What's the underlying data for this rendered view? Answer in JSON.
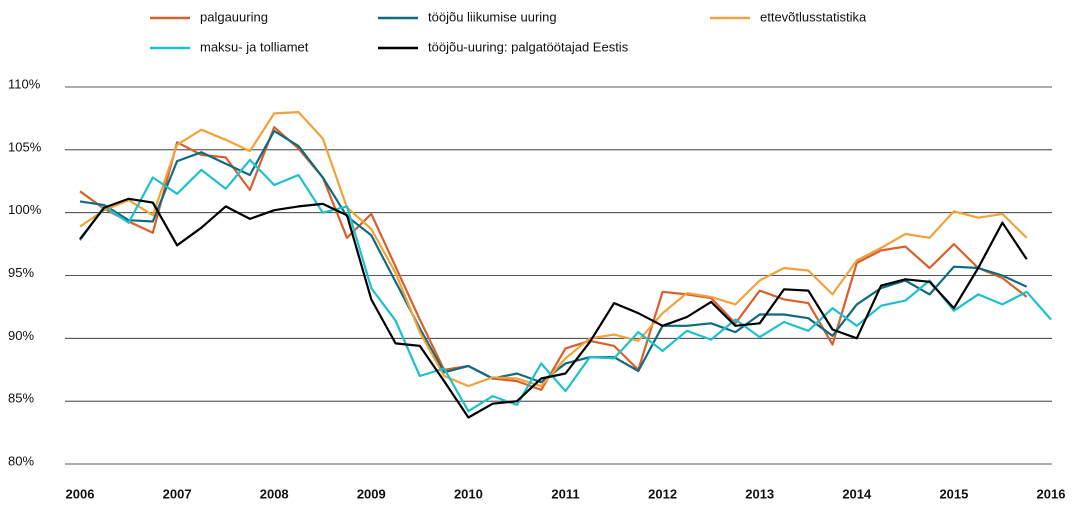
{
  "chart_data": {
    "type": "line",
    "x": [
      2006,
      2006.25,
      2006.5,
      2006.75,
      2007,
      2007.25,
      2007.5,
      2007.75,
      2008,
      2008.25,
      2008.5,
      2008.75,
      2009,
      2009.25,
      2009.5,
      2009.75,
      2010,
      2010.25,
      2010.5,
      2010.75,
      2011,
      2011.25,
      2011.5,
      2011.75,
      2012,
      2012.25,
      2012.5,
      2012.75,
      2013,
      2013.25,
      2013.5,
      2013.75,
      2014,
      2014.25,
      2014.5,
      2014.75,
      2015,
      2015.25,
      2015.5,
      2015.75,
      2016
    ],
    "series": [
      {
        "name": "palgauuring",
        "color": "#d95f2b",
        "values": [
          101.7,
          100.3,
          99.3,
          98.4,
          105.6,
          104.6,
          104.4,
          101.8,
          106.8,
          105.1,
          102.8,
          98.0,
          99.9,
          95.7,
          91.5,
          87.5,
          87.8,
          86.8,
          86.6,
          85.9,
          89.2,
          89.8,
          89.4,
          87.5,
          93.7,
          93.5,
          93.2,
          91.2,
          93.8,
          93.1,
          92.8,
          89.5,
          96.0,
          97.0,
          97.3,
          95.6,
          97.5,
          95.6,
          94.8,
          93.3,
          null
        ]
      },
      {
        "name": "tööjõu liikumise uuring",
        "color": "#0f6b80",
        "values": [
          100.9,
          100.6,
          99.4,
          99.3,
          104.1,
          104.8,
          103.9,
          103.0,
          106.5,
          105.3,
          102.8,
          99.7,
          98.2,
          94.5,
          90.8,
          87.3,
          87.8,
          86.8,
          87.2,
          86.5,
          88.0,
          88.5,
          88.5,
          87.4,
          91.0,
          91.0,
          91.2,
          90.5,
          91.9,
          91.9,
          91.6,
          90.2,
          92.7,
          94.0,
          94.6,
          93.5,
          95.7,
          95.6,
          95.0,
          94.1,
          null
        ]
      },
      {
        "name": "ettevõtlusstatistika",
        "color": "#f2a23a",
        "values": [
          98.9,
          100.2,
          101.0,
          99.8,
          105.4,
          106.6,
          105.8,
          104.9,
          107.9,
          108.0,
          105.9,
          100.4,
          98.7,
          95.2,
          90.5,
          87.0,
          86.2,
          86.9,
          86.8,
          86.2,
          88.4,
          90.0,
          90.3,
          89.8,
          92.0,
          93.6,
          93.3,
          92.7,
          94.6,
          95.6,
          95.4,
          93.5,
          96.2,
          97.2,
          98.3,
          98.0,
          100.1,
          99.6,
          99.9,
          98.0,
          null
        ]
      },
      {
        "name": "maksu- ja tolliamet",
        "color": "#1ec0d0",
        "values": [
          97.8,
          100.5,
          99.2,
          102.8,
          101.5,
          103.4,
          101.9,
          104.2,
          102.2,
          103.0,
          100.0,
          100.5,
          94.0,
          91.4,
          87.0,
          87.6,
          84.2,
          85.4,
          84.7,
          88.0,
          85.8,
          88.5,
          88.4,
          90.5,
          89.0,
          90.6,
          89.9,
          91.5,
          90.1,
          91.3,
          90.6,
          92.4,
          91.0,
          92.6,
          93.0,
          94.6,
          92.2,
          93.5,
          92.7,
          93.7,
          91.5
        ]
      },
      {
        "name": "tööjõu-uuring: palgatöötajad Eestis",
        "color": "#000000",
        "values": [
          97.9,
          100.4,
          101.1,
          100.8,
          97.4,
          98.8,
          100.5,
          99.5,
          100.2,
          100.5,
          100.7,
          99.8,
          93.1,
          89.6,
          89.4,
          86.6,
          83.7,
          84.8,
          85.0,
          86.8,
          87.2,
          89.7,
          92.8,
          92.0,
          91.0,
          91.7,
          92.9,
          91.0,
          91.2,
          93.9,
          93.8,
          90.7,
          90.0,
          94.2,
          94.7,
          94.5,
          92.4,
          95.6,
          99.2,
          96.3,
          null
        ]
      }
    ],
    "xlim": [
      2006,
      2016
    ],
    "xticks": [
      2006,
      2007,
      2008,
      2009,
      2010,
      2011,
      2012,
      2013,
      2014,
      2015,
      2016
    ],
    "ylim": [
      80,
      110
    ],
    "yticks": [
      {
        "value": 80,
        "label": "80%"
      },
      {
        "value": 85,
        "label": "85%"
      },
      {
        "value": 90,
        "label": "90%"
      },
      {
        "value": 95,
        "label": "95%"
      },
      {
        "value": 100,
        "label": "100%"
      },
      {
        "value": 105,
        "label": "105%"
      },
      {
        "value": 110,
        "label": "110%"
      }
    ],
    "grid": true
  }
}
